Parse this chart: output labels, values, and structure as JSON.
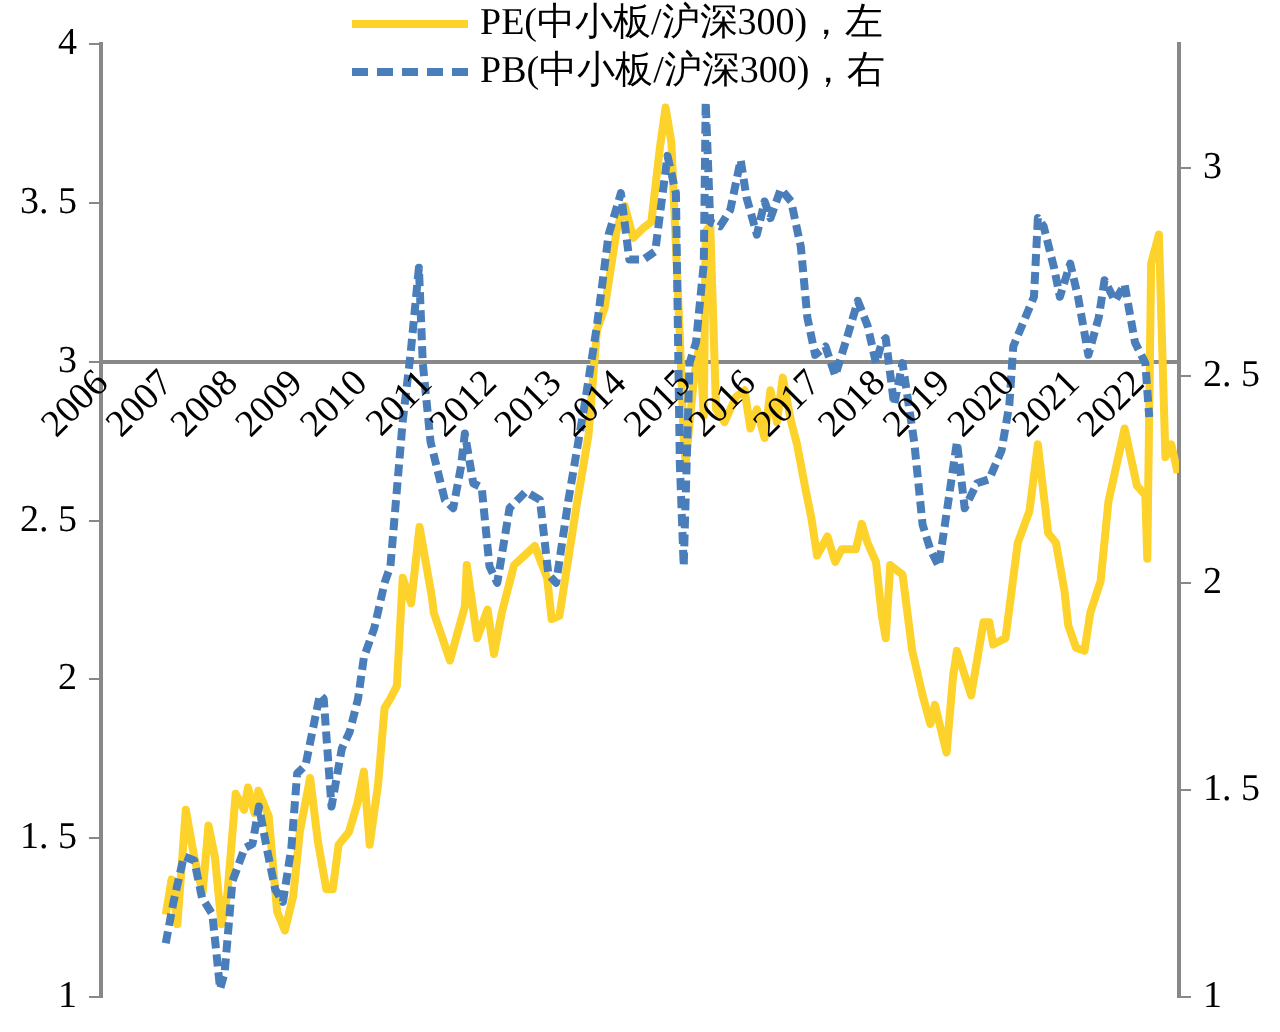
{
  "chart_data": {
    "type": "line",
    "legend": "top",
    "xlim": [
      2006,
      2022.65
    ],
    "xticks": [
      2006,
      2007,
      2008,
      2009,
      2010,
      2011,
      2012,
      2013,
      2014,
      2015,
      2016,
      2017,
      2018,
      2019,
      2020,
      2021,
      2022
    ],
    "ylim": [
      1,
      4
    ],
    "yticks": [
      1,
      {
        "value": 1.5,
        "label": "1. 5"
      },
      2,
      {
        "value": 2.5,
        "label": "2. 5"
      },
      3,
      {
        "value": 3.5,
        "label": "3. 5"
      },
      4
    ],
    "y2lim": [
      1,
      3.3
    ],
    "y2ticks": [
      1,
      {
        "value": 1.5,
        "label": "1. 5"
      },
      2,
      {
        "value": 2.5,
        "label": "2. 5"
      },
      3
    ],
    "series": [
      {
        "name": "PE(中小板/沪深300)，左",
        "color": "#fdd22b",
        "line_style": "solid",
        "x": [
          2007.0,
          2007.09,
          2007.18,
          2007.31,
          2007.44,
          2007.57,
          2007.66,
          2007.76,
          2007.86,
          2007.95,
          2008.08,
          2008.21,
          2008.27,
          2008.37,
          2008.43,
          2008.59,
          2008.72,
          2008.84,
          2008.97,
          2009.07,
          2009.23,
          2009.35,
          2009.48,
          2009.58,
          2009.67,
          2009.83,
          2009.96,
          2010.06,
          2010.15,
          2010.28,
          2010.38,
          2010.47,
          2010.57,
          2010.66,
          2010.79,
          2010.92,
          2011.11,
          2011.14,
          2011.39,
          2011.62,
          2011.65,
          2011.81,
          2011.97,
          2012.07,
          2012.19,
          2012.38,
          2012.7,
          2012.89,
          2012.96,
          2013.08,
          2013.34,
          2013.53,
          2013.66,
          2013.78,
          2013.97,
          2014.09,
          2014.22,
          2014.37,
          2014.5,
          2014.63,
          2014.72,
          2014.81,
          2014.94,
          2015.0,
          2015.03,
          2015.16,
          2015.25,
          2015.31,
          2015.34,
          2015.41,
          2015.5,
          2015.63,
          2015.81,
          2015.94,
          2016.03,
          2016.13,
          2016.25,
          2016.34,
          2016.44,
          2016.53,
          2016.66,
          2016.75,
          2016.88,
          2016.97,
          2017.06,
          2017.22,
          2017.34,
          2017.44,
          2017.66,
          2017.75,
          2017.84,
          2017.97,
          2018.06,
          2018.12,
          2018.19,
          2018.38,
          2018.53,
          2018.69,
          2018.81,
          2018.88,
          2019.06,
          2019.16,
          2019.22,
          2019.44,
          2019.63,
          2019.72,
          2019.78,
          2019.97,
          2020.16,
          2020.34,
          2020.47,
          2020.63,
          2020.75,
          2020.88,
          2020.94,
          2021.06,
          2021.19,
          2021.28,
          2021.44,
          2021.56,
          2021.81,
          2022.0,
          2022.13,
          2022.16,
          2022.22,
          2022.34,
          2022.44,
          2022.53,
          2022.63
        ],
        "values": [
          1.26,
          1.37,
          1.23,
          1.59,
          1.44,
          1.33,
          1.54,
          1.44,
          1.23,
          1.32,
          1.64,
          1.59,
          1.66,
          1.58,
          1.65,
          1.57,
          1.27,
          1.21,
          1.32,
          1.52,
          1.69,
          1.49,
          1.34,
          1.34,
          1.48,
          1.52,
          1.61,
          1.71,
          1.48,
          1.67,
          1.91,
          1.94,
          1.98,
          2.32,
          2.24,
          2.48,
          2.26,
          2.21,
          2.06,
          2.23,
          2.36,
          2.13,
          2.22,
          2.08,
          2.21,
          2.36,
          2.42,
          2.32,
          2.19,
          2.2,
          2.54,
          2.77,
          3.1,
          3.17,
          3.42,
          3.49,
          3.39,
          3.42,
          3.44,
          3.67,
          3.8,
          3.69,
          3.08,
          2.76,
          2.68,
          2.95,
          3.06,
          2.83,
          3.41,
          3.43,
          2.85,
          2.81,
          2.89,
          2.91,
          2.79,
          2.85,
          2.76,
          2.91,
          2.81,
          2.95,
          2.81,
          2.74,
          2.6,
          2.51,
          2.39,
          2.45,
          2.37,
          2.41,
          2.41,
          2.49,
          2.43,
          2.37,
          2.2,
          2.13,
          2.36,
          2.33,
          2.09,
          1.95,
          1.86,
          1.92,
          1.77,
          2.01,
          2.09,
          1.95,
          2.18,
          2.18,
          2.11,
          2.13,
          2.43,
          2.53,
          2.74,
          2.46,
          2.43,
          2.28,
          2.17,
          2.1,
          2.09,
          2.21,
          2.31,
          2.56,
          2.79,
          2.61,
          2.58,
          2.38,
          3.31,
          3.4,
          2.7,
          2.74,
          2.65
        ]
      },
      {
        "name": "PB(中小板/沪深300)，右",
        "color": "#4a7ebb",
        "line_style": "dashed",
        "axis": "y2",
        "x": [
          2007.0,
          2007.12,
          2007.28,
          2007.44,
          2007.56,
          2007.72,
          2007.84,
          2007.91,
          2008.03,
          2008.22,
          2008.34,
          2008.44,
          2008.56,
          2008.69,
          2008.81,
          2008.94,
          2009.03,
          2009.16,
          2009.38,
          2009.44,
          2009.56,
          2009.72,
          2009.84,
          2009.97,
          2010.06,
          2010.22,
          2010.38,
          2010.47,
          2010.66,
          2010.78,
          2010.91,
          2010.97,
          2011.09,
          2011.31,
          2011.44,
          2011.56,
          2011.62,
          2011.75,
          2011.88,
          2012.0,
          2012.12,
          2012.31,
          2012.56,
          2012.78,
          2012.91,
          2013.03,
          2013.22,
          2013.47,
          2013.66,
          2013.84,
          2014.03,
          2014.16,
          2014.38,
          2014.56,
          2014.75,
          2014.88,
          2014.94,
          2015.0,
          2015.09,
          2015.19,
          2015.31,
          2015.34,
          2015.41,
          2015.56,
          2015.72,
          2015.88,
          2015.97,
          2016.13,
          2016.25,
          2016.34,
          2016.5,
          2016.66,
          2016.81,
          2016.91,
          2017.03,
          2017.19,
          2017.34,
          2017.5,
          2017.69,
          2017.84,
          2017.97,
          2018.06,
          2018.12,
          2018.25,
          2018.38,
          2018.56,
          2018.69,
          2018.81,
          2018.94,
          2019.09,
          2019.22,
          2019.34,
          2019.53,
          2019.72,
          2019.91,
          2020.03,
          2020.09,
          2020.41,
          2020.47,
          2020.56,
          2020.72,
          2020.81,
          2020.97,
          2021.09,
          2021.25,
          2021.41,
          2021.5,
          2021.66,
          2021.81,
          2021.97,
          2022.13,
          2022.19
        ],
        "values": [
          1.13,
          1.23,
          1.34,
          1.33,
          1.24,
          1.2,
          1.02,
          1.06,
          1.28,
          1.36,
          1.37,
          1.46,
          1.36,
          1.26,
          1.23,
          1.36,
          1.54,
          1.56,
          1.73,
          1.72,
          1.46,
          1.6,
          1.64,
          1.72,
          1.82,
          1.89,
          2.0,
          2.04,
          2.39,
          2.55,
          2.76,
          2.53,
          2.34,
          2.2,
          2.18,
          2.28,
          2.36,
          2.24,
          2.23,
          2.04,
          2.0,
          2.18,
          2.22,
          2.2,
          2.02,
          2.0,
          2.2,
          2.43,
          2.62,
          2.84,
          2.94,
          2.78,
          2.78,
          2.8,
          3.03,
          2.94,
          2.29,
          2.04,
          2.53,
          2.58,
          2.77,
          3.16,
          2.87,
          2.86,
          2.9,
          3.02,
          2.93,
          2.84,
          2.92,
          2.88,
          2.95,
          2.92,
          2.81,
          2.64,
          2.55,
          2.57,
          2.5,
          2.58,
          2.68,
          2.62,
          2.53,
          2.58,
          2.59,
          2.43,
          2.53,
          2.34,
          2.14,
          2.08,
          2.04,
          2.2,
          2.34,
          2.18,
          2.24,
          2.25,
          2.32,
          2.43,
          2.57,
          2.69,
          2.88,
          2.86,
          2.76,
          2.69,
          2.77,
          2.69,
          2.55,
          2.64,
          2.73,
          2.68,
          2.72,
          2.58,
          2.53,
          2.4
        ]
      }
    ]
  }
}
